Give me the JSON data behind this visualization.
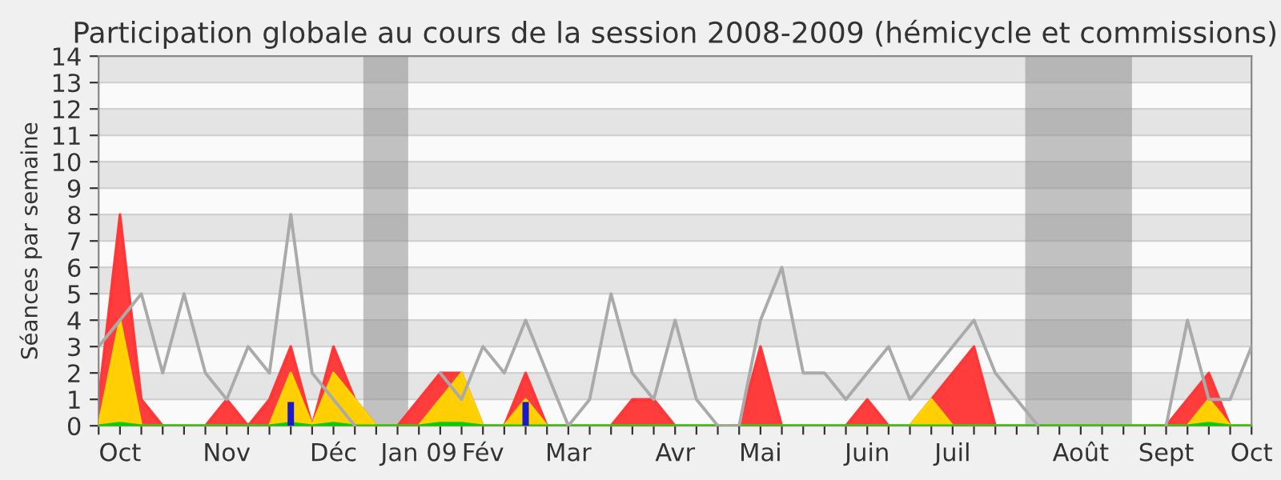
{
  "chart_data": {
    "type": "area",
    "title": "Participation globale au cours de la session 2008-2009 (hémicycle et commissions)",
    "ylabel": "Séances par semaine",
    "categories": [
      null,
      "Oct",
      null,
      null,
      null,
      null,
      "Nov",
      null,
      null,
      null,
      null,
      "Déc",
      null,
      null,
      null,
      "Jan 09",
      null,
      null,
      "Fév",
      null,
      null,
      null,
      "Mar",
      null,
      null,
      null,
      null,
      "Avr",
      null,
      null,
      null,
      "Mai",
      null,
      null,
      null,
      null,
      "Juin",
      null,
      null,
      null,
      "Juil",
      null,
      null,
      null,
      null,
      null,
      "Août",
      null,
      null,
      null,
      "Sept",
      null,
      null,
      null,
      "Oct"
    ],
    "series": [
      {
        "color": "#ff3333",
        "values": [
          1,
          8,
          1,
          0,
          0,
          0,
          1,
          0,
          1,
          3,
          0,
          3,
          1,
          0,
          0,
          1,
          2,
          2,
          0,
          0,
          2,
          0,
          0,
          0,
          0,
          1,
          1,
          0,
          0,
          0,
          0,
          3,
          0,
          0,
          0,
          0,
          1,
          0,
          0,
          1,
          2,
          3,
          0,
          0,
          0,
          0,
          0,
          0,
          0,
          0,
          0,
          1,
          2,
          0,
          0
        ]
      },
      {
        "color": "#ffd700",
        "values": [
          0,
          4,
          0,
          0,
          0,
          0,
          0,
          0,
          0,
          2,
          0,
          2,
          1,
          0,
          0,
          0,
          1,
          2,
          0,
          0,
          1,
          0,
          0,
          0,
          0,
          0,
          0,
          0,
          0,
          0,
          0,
          0,
          0,
          0,
          0,
          0,
          0,
          0,
          0,
          1,
          0,
          0,
          0,
          0,
          0,
          0,
          0,
          0,
          0,
          0,
          0,
          0,
          1,
          0,
          0
        ]
      },
      {
        "color": "#00cc00",
        "values": [
          0,
          0.1,
          0,
          0,
          0,
          0,
          0,
          0,
          0,
          0.1,
          0,
          0.1,
          0,
          0,
          0,
          0,
          0.1,
          0.1,
          0,
          0,
          0,
          0,
          0,
          0,
          0,
          0,
          0,
          0,
          0,
          0,
          0,
          0,
          0,
          0,
          0,
          0,
          0,
          0,
          0,
          0,
          0,
          0,
          0,
          0,
          0,
          0,
          0,
          0,
          0,
          0,
          0,
          0,
          0.1,
          0,
          0
        ]
      },
      {
        "type": "bar",
        "color": "#1a1acc",
        "values": [
          0,
          0,
          0,
          0,
          0,
          0,
          0,
          0,
          0,
          0.9,
          0,
          0,
          0,
          0,
          0,
          0,
          0,
          0,
          0,
          0,
          0.9,
          0,
          0,
          0,
          0,
          0,
          0,
          0,
          0,
          0,
          0,
          0,
          0,
          0,
          0,
          0,
          0,
          0,
          0,
          0,
          0,
          0,
          0,
          0,
          0,
          0,
          0,
          0,
          0,
          0,
          0,
          0,
          0,
          0,
          0
        ]
      },
      {
        "type": "line",
        "color": "#aaaaaa",
        "values": [
          3,
          4,
          5,
          2,
          5,
          2,
          1,
          3,
          2,
          8,
          2,
          1,
          0,
          null,
          null,
          null,
          2,
          1,
          3,
          2,
          4,
          2,
          0,
          1,
          5,
          2,
          1,
          4,
          1,
          0,
          0,
          4,
          6,
          2,
          2,
          1,
          2,
          3,
          1,
          2,
          3,
          4,
          2,
          1,
          0,
          null,
          null,
          null,
          null,
          null,
          0,
          4,
          1,
          1,
          3
        ]
      }
    ],
    "ylim": [
      0,
      14
    ],
    "yticks": [
      0,
      1,
      2,
      3,
      4,
      5,
      6,
      7,
      8,
      9,
      10,
      11,
      12,
      13,
      14
    ],
    "grid": "y"
  }
}
